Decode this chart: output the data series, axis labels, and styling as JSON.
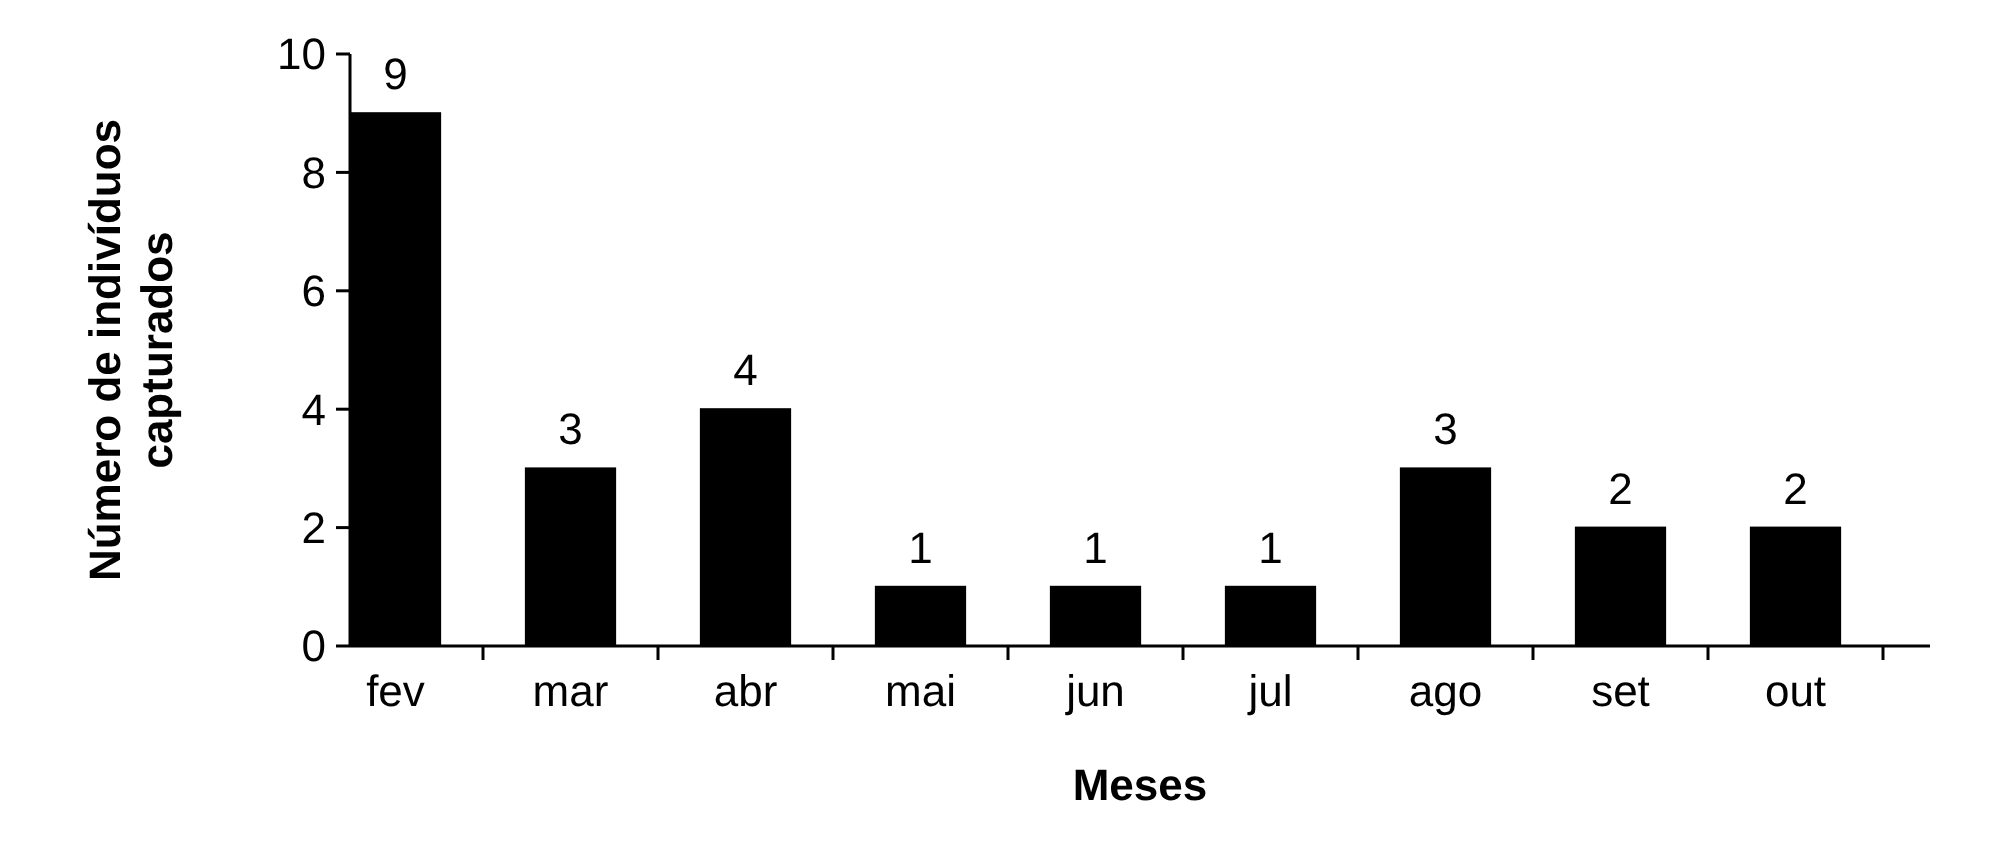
{
  "chart_data": {
    "type": "bar",
    "xlabel": "Meses",
    "ylabel": "Número de indivíduos capturados",
    "categories": [
      "fev",
      "mar",
      "abr",
      "mai",
      "jun",
      "jul",
      "ago",
      "set",
      "out"
    ],
    "values": [
      9,
      3,
      4,
      1,
      1,
      1,
      3,
      2,
      2
    ],
    "color": "#000000",
    "ylim": [
      0,
      10
    ],
    "yticks": [
      0,
      2,
      4,
      6,
      8,
      10
    ],
    "grid": false,
    "data_labels": true
  }
}
